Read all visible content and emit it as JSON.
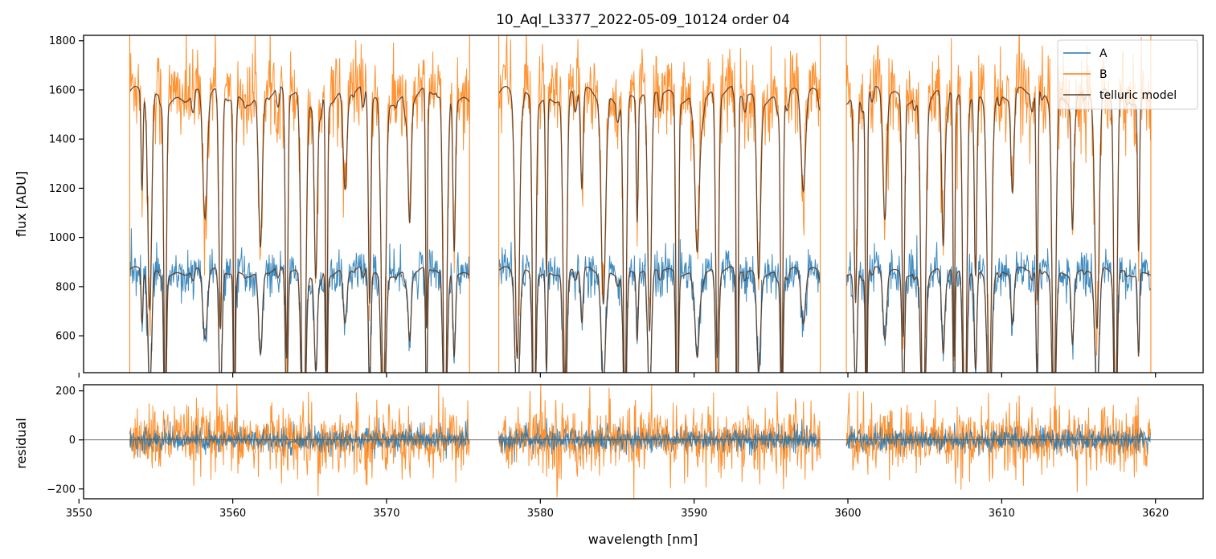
{
  "chart_data": [
    {
      "type": "line",
      "panel": "top",
      "title": "10_Aql_L3377_2022-05-09_10124  order 04",
      "xlabel": "",
      "ylabel": "flux [ADU]",
      "xlim": [
        3550.3,
        3623.1
      ],
      "ylim": [
        450,
        1822
      ],
      "xticks": [
        3550,
        3560,
        3570,
        3580,
        3590,
        3600,
        3610,
        3620
      ],
      "yticks": [
        600,
        800,
        1000,
        1200,
        1400,
        1600,
        1800
      ],
      "ytick_labels": [
        "600",
        "800",
        "1000",
        "1200",
        "1400",
        "1600",
        "1800"
      ],
      "legend_position": "top-right",
      "segments": [
        [
          3553.3,
          3575.4
        ],
        [
          3577.3,
          3598.2
        ],
        [
          3599.9,
          3619.7
        ]
      ],
      "series": [
        {
          "name": "A",
          "color": "#1f77b4",
          "continuum": 860,
          "noise": 55,
          "style": "noisy"
        },
        {
          "name": "B",
          "color": "#ff7f0e",
          "continuum": 1590,
          "noise": 110,
          "style": "noisy"
        },
        {
          "name": "telluric model",
          "color": "#5a3a22",
          "style": "model",
          "levels": [
            860,
            1575
          ]
        }
      ],
      "absorption_lines_nm": [
        3554.1,
        3554.6,
        3555.6,
        3558.2,
        3559.2,
        3560.1,
        3561.8,
        3563.5,
        3564.6,
        3565.4,
        3566.1,
        3567.3,
        3568.9,
        3569.8,
        3571.5,
        3572.6,
        3573.8,
        3574.4,
        3578.5,
        3579.6,
        3580.4,
        3581.6,
        3582.7,
        3584.1,
        3585.5,
        3586.3,
        3587.1,
        3588.9,
        3590.2,
        3591.5,
        3592.8,
        3594.2,
        3595.7,
        3597.1,
        3600.5,
        3601.2,
        3602.4,
        3603.6,
        3604.9,
        3606.2,
        3606.9,
        3607.6,
        3608.3,
        3609.2,
        3610.7,
        3612.3,
        3613.4,
        3614.6,
        3616.2,
        3617.4,
        3618.9
      ]
    },
    {
      "type": "line",
      "panel": "bottom",
      "title": "",
      "xlabel": "wavelength [nm]",
      "ylabel": "residual",
      "xlim": [
        3550.3,
        3623.1
      ],
      "ylim": [
        -240,
        225
      ],
      "xticks": [
        3550,
        3560,
        3570,
        3580,
        3590,
        3600,
        3610,
        3620
      ],
      "xtick_labels": [
        "3550",
        "3560",
        "3570",
        "3580",
        "3590",
        "3600",
        "3610",
        "3620"
      ],
      "yticks": [
        -200,
        0,
        200
      ],
      "ytick_labels": [
        "−200",
        "0",
        "200"
      ],
      "zero_line": true,
      "segments": [
        [
          3553.3,
          3575.4
        ],
        [
          3577.3,
          3598.2
        ],
        [
          3599.9,
          3619.7
        ]
      ],
      "series": [
        {
          "name": "A",
          "color": "#1f77b4",
          "noise": 35
        },
        {
          "name": "B",
          "color": "#ff7f0e",
          "noise": 95
        }
      ]
    }
  ]
}
